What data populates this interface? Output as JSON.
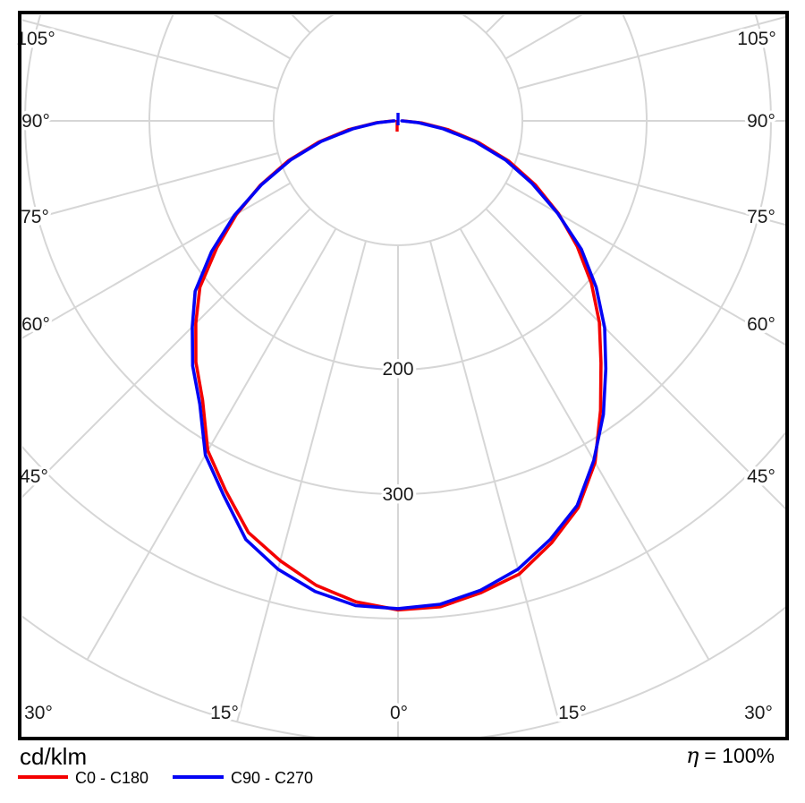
{
  "figure": {
    "footer": {
      "units": "cd/klm",
      "efficiency_symbol": "η",
      "efficiency_value": "= 100%"
    },
    "legend": [
      {
        "label": "C0 - C180",
        "color": "#f40000"
      },
      {
        "label": "C90 - C270",
        "color": "#0404f4"
      }
    ]
  },
  "chart_data": {
    "type": "polar-photometric",
    "title": "",
    "units": "cd/klm",
    "efficiency": "η = 100%",
    "grid_color": "#d6d6d6",
    "label_color": "#1b1b1b",
    "r_axis_rings_cd_per_klm": [
      100,
      200,
      300,
      400,
      500
    ],
    "ring_labels": [
      "200",
      "300"
    ],
    "angle_labels": [
      "105°",
      "90°",
      "75°",
      "60°",
      "45°",
      "30°",
      "15°",
      "0°",
      "15°",
      "30°",
      "45°",
      "60°",
      "75°",
      "90°",
      "105°"
    ],
    "spoke_step_deg": 15,
    "gamma_deg": [
      -90,
      -85,
      -80,
      -75,
      -70,
      -65,
      -60,
      -55,
      -50,
      -45,
      -40,
      -35,
      -30,
      -25,
      -20,
      -15,
      -10,
      -5,
      0,
      5,
      10,
      15,
      20,
      25,
      30,
      35,
      40,
      45,
      50,
      55,
      60,
      65,
      70,
      75,
      80,
      85,
      90
    ],
    "series": [
      {
        "name": "C0 - C180",
        "color": "#f40000",
        "values_cd_per_klm": [
          4,
          18,
          40,
          66,
          94,
          122,
          150,
          178,
          208,
          230,
          253,
          274,
          306,
          328,
          352,
          366,
          379,
          388,
          393,
          392,
          385,
          377,
          361,
          343,
          317,
          284,
          254,
          229,
          203,
          176,
          149,
          122,
          95,
          67,
          41,
          19,
          4
        ]
      },
      {
        "name": "C90 - C270",
        "color": "#0404f4",
        "values_cd_per_klm": [
          3,
          16,
          37,
          64,
          92,
          121,
          152,
          183,
          213,
          234,
          257,
          278,
          310,
          332,
          358,
          373,
          384,
          391,
          392,
          390,
          383,
          373,
          358,
          341,
          315,
          288,
          260,
          235,
          208,
          180,
          148,
          119,
          92,
          64,
          37,
          16,
          3
        ]
      }
    ],
    "max_value_cd_per_klm": 393
  }
}
